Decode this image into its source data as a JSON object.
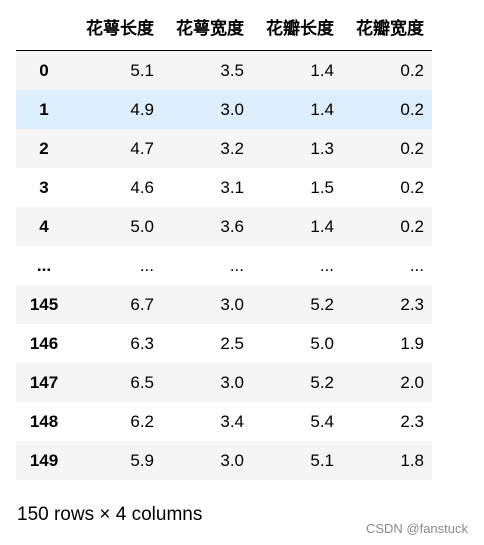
{
  "table": {
    "columns": [
      "花萼长度",
      "花萼宽度",
      "花瓣长度",
      "花瓣宽度"
    ],
    "rows": [
      {
        "index": "0",
        "values": [
          "5.1",
          "3.5",
          "1.4",
          "0.2"
        ],
        "style": "stripe"
      },
      {
        "index": "1",
        "values": [
          "4.9",
          "3.0",
          "1.4",
          "0.2"
        ],
        "style": "hover"
      },
      {
        "index": "2",
        "values": [
          "4.7",
          "3.2",
          "1.3",
          "0.2"
        ],
        "style": "stripe"
      },
      {
        "index": "3",
        "values": [
          "4.6",
          "3.1",
          "1.5",
          "0.2"
        ],
        "style": "plain"
      },
      {
        "index": "4",
        "values": [
          "5.0",
          "3.6",
          "1.4",
          "0.2"
        ],
        "style": "stripe"
      },
      {
        "index": "...",
        "values": [
          "...",
          "...",
          "...",
          "..."
        ],
        "style": "plain"
      },
      {
        "index": "145",
        "values": [
          "6.7",
          "3.0",
          "5.2",
          "2.3"
        ],
        "style": "stripe"
      },
      {
        "index": "146",
        "values": [
          "6.3",
          "2.5",
          "5.0",
          "1.9"
        ],
        "style": "plain"
      },
      {
        "index": "147",
        "values": [
          "6.5",
          "3.0",
          "5.2",
          "2.0"
        ],
        "style": "stripe"
      },
      {
        "index": "148",
        "values": [
          "6.2",
          "3.4",
          "5.4",
          "2.3"
        ],
        "style": "plain"
      },
      {
        "index": "149",
        "values": [
          "5.9",
          "3.0",
          "5.1",
          "1.8"
        ],
        "style": "stripe"
      }
    ]
  },
  "footer": {
    "shape_text": "150 rows × 4 columns"
  },
  "watermark": {
    "text": "CSDN @fanstuck"
  },
  "colors": {
    "stripe": "#f5f5f5",
    "hover": "#ddeefc",
    "header_border": "#000000"
  }
}
